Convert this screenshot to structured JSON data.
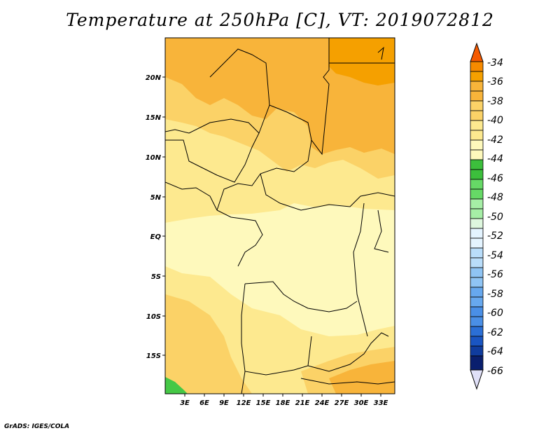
{
  "title": "Temperature at 250hPa [C], VT: 2019072812",
  "credit": "GrADS: IGES/COLA",
  "map": {
    "lat_labels": [
      "20N",
      "15N",
      "10N",
      "5N",
      "EQ",
      "5S",
      "10S",
      "15S"
    ],
    "lon_labels": [
      "3E",
      "6E",
      "9E",
      "12E",
      "15E",
      "18E",
      "21E",
      "24E",
      "27E",
      "30E",
      "33E"
    ],
    "colors": {
      "c36_34": "#f5a000",
      "c38_36": "#f8b43a",
      "c40_38": "#fbd267",
      "c42_40": "#fde98f",
      "c44_42": "#fef9bc",
      "c46_44": "#45c846",
      "border": "#000000"
    }
  },
  "colorbar": {
    "labels": [
      "-34",
      "-36",
      "-38",
      "-40",
      "-42",
      "-44",
      "-46",
      "-48",
      "-50",
      "-52",
      "-54",
      "-56",
      "-58",
      "-60",
      "-62",
      "-64",
      "-66"
    ],
    "colors": [
      "#f55a00",
      "#f78a00",
      "#f5a000",
      "#f8b43a",
      "#fbd267",
      "#fde98f",
      "#fef9bc",
      "#3cbf3c",
      "#66d966",
      "#a6eea6",
      "#def7de",
      "#e4f4ff",
      "#b9ddfa",
      "#8fc4f4",
      "#67a8ee",
      "#4a8fe6",
      "#2b6fd6",
      "#1a55c2",
      "#103c9e",
      "#0a1f6e",
      "#e0e0f8"
    ]
  }
}
